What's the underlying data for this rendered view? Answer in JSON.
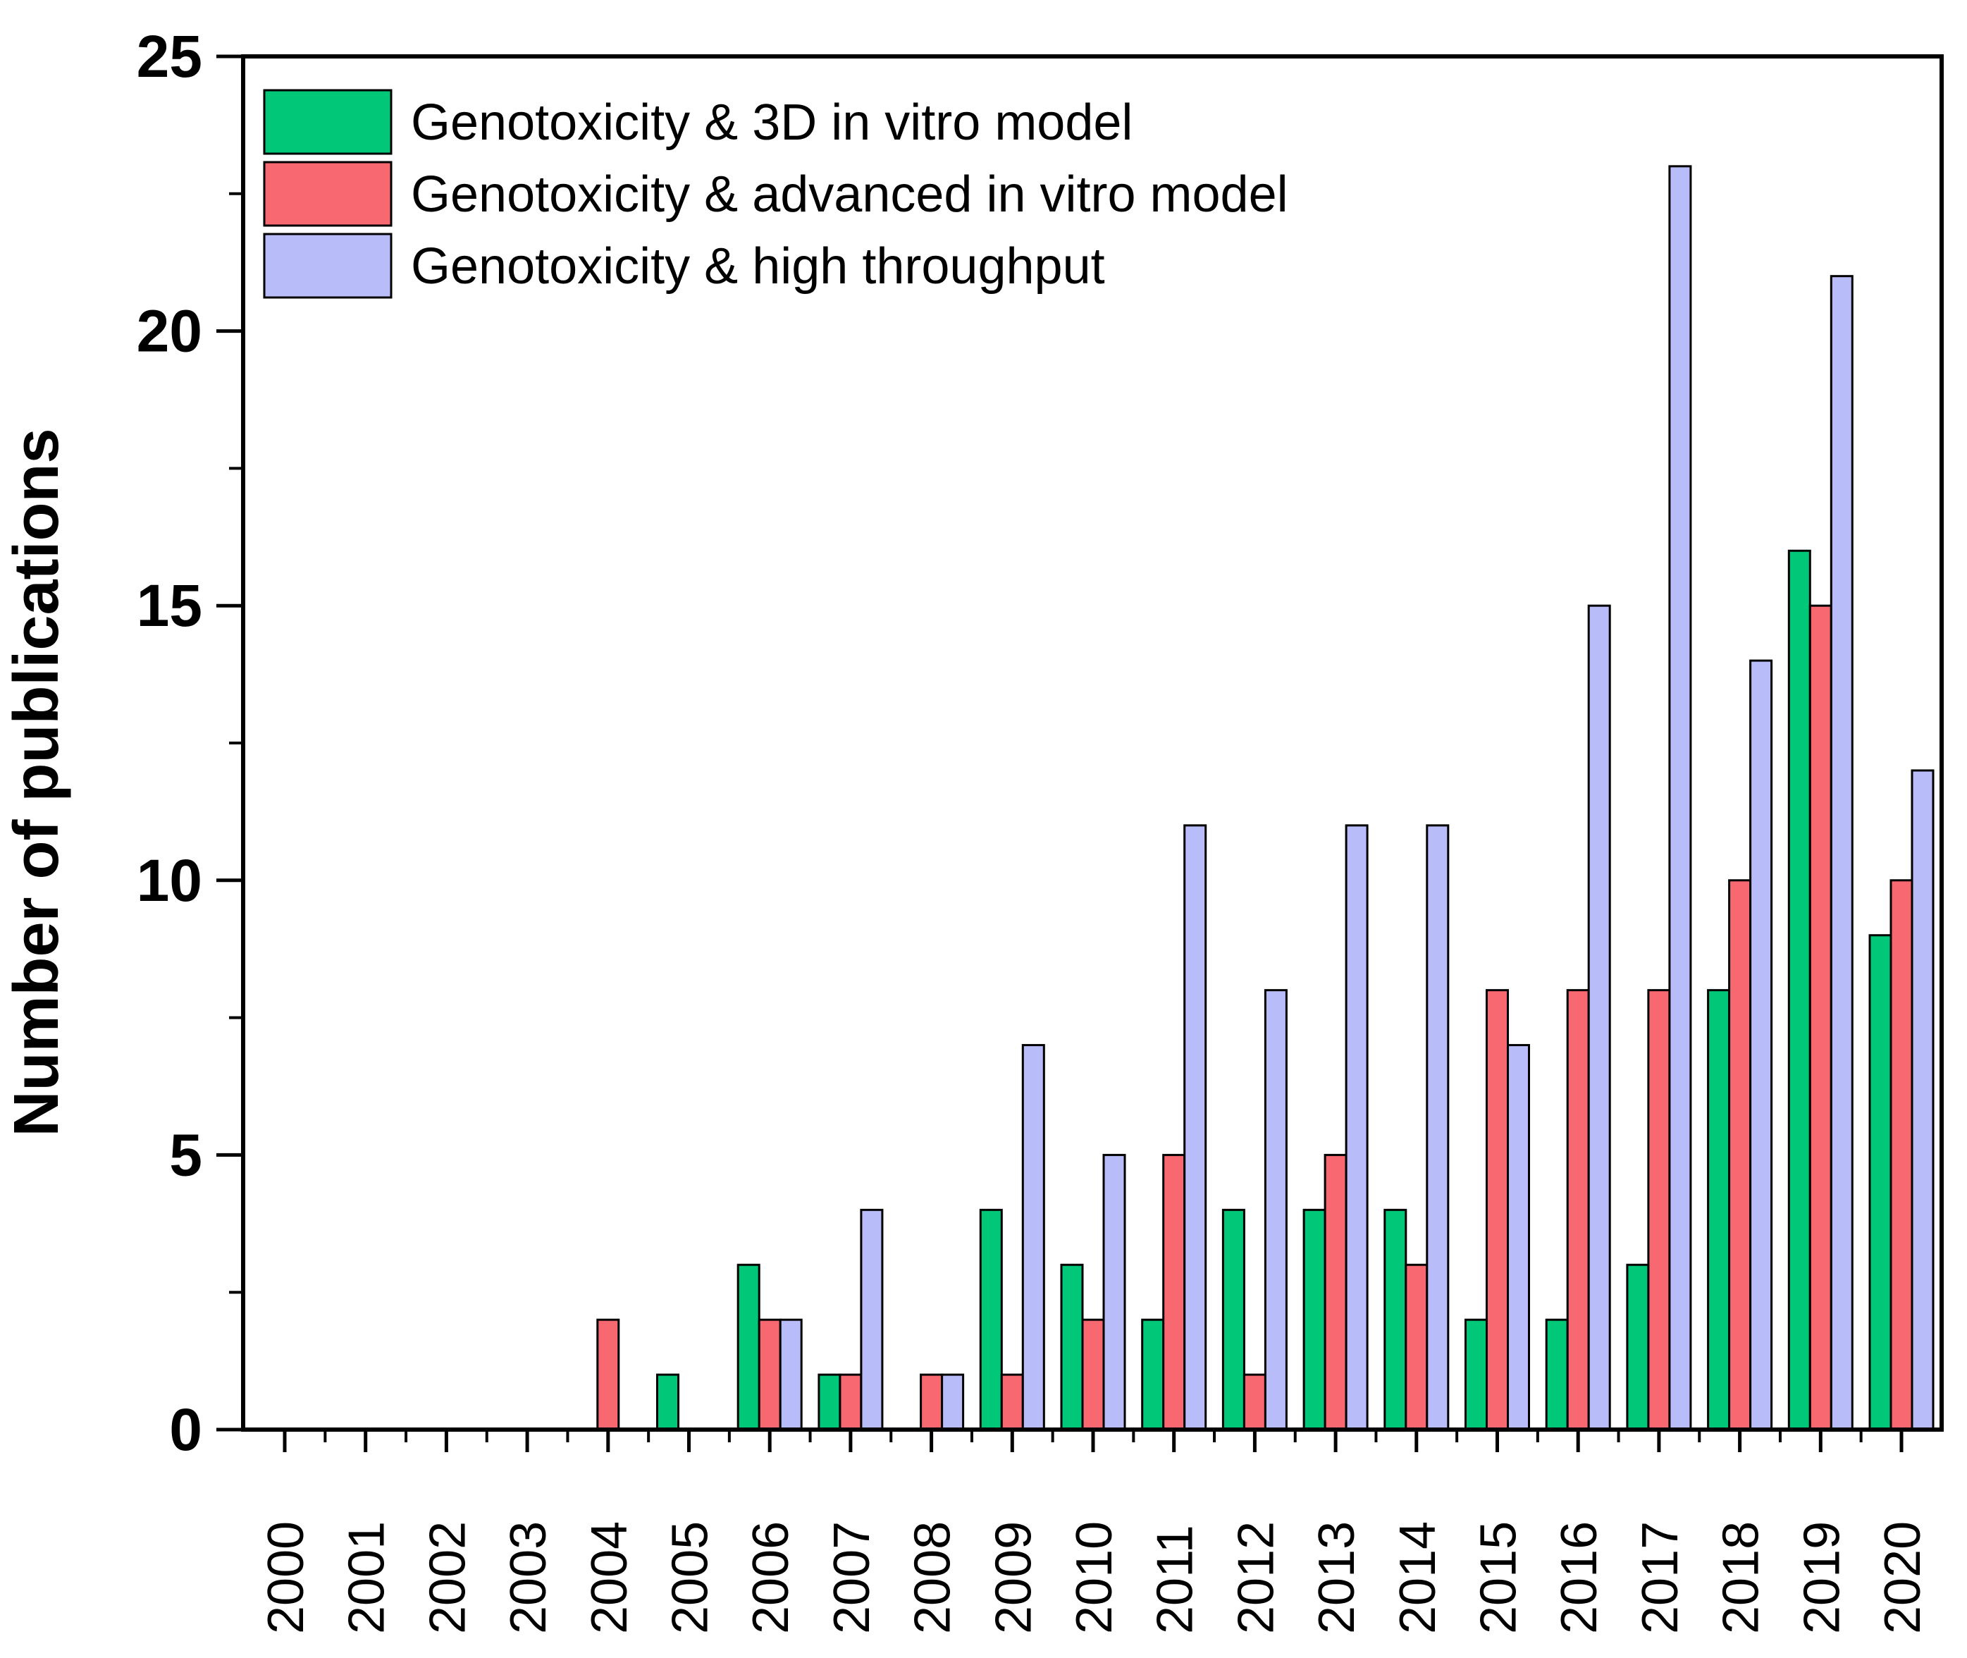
{
  "chart_data": {
    "type": "bar",
    "title": "",
    "xlabel": "",
    "ylabel": "Number of publications",
    "ylim": [
      0,
      25
    ],
    "yticks": [
      "0",
      "5",
      "10",
      "15",
      "20",
      "25"
    ],
    "grid": false,
    "legend_position": "top-left",
    "categories": [
      "2000",
      "2001",
      "2002",
      "2003",
      "2004",
      "2005",
      "2006",
      "2007",
      "2008",
      "2009",
      "2010",
      "2011",
      "2012",
      "2013",
      "2014",
      "2015",
      "2016",
      "2017",
      "2018",
      "2019",
      "2020"
    ],
    "series": [
      {
        "name": "Genotoxicity & 3D in vitro model",
        "color": "#00c878",
        "values": [
          0,
          0,
          0,
          0,
          0,
          1,
          3,
          1,
          0,
          4,
          3,
          2,
          4,
          4,
          4,
          2,
          2,
          3,
          8,
          16,
          9
        ]
      },
      {
        "name": "Genotoxicity & advanced in vitro model",
        "color": "#f86870",
        "values": [
          0,
          0,
          0,
          0,
          2,
          0,
          2,
          1,
          1,
          1,
          2,
          5,
          1,
          5,
          3,
          8,
          8,
          8,
          10,
          15,
          10
        ]
      },
      {
        "name": "Genotoxicity & high throughput",
        "color": "#b8bcf8",
        "values": [
          0,
          0,
          0,
          0,
          0,
          0,
          2,
          4,
          1,
          7,
          5,
          11,
          8,
          11,
          11,
          7,
          15,
          23,
          14,
          21,
          12
        ]
      }
    ]
  }
}
